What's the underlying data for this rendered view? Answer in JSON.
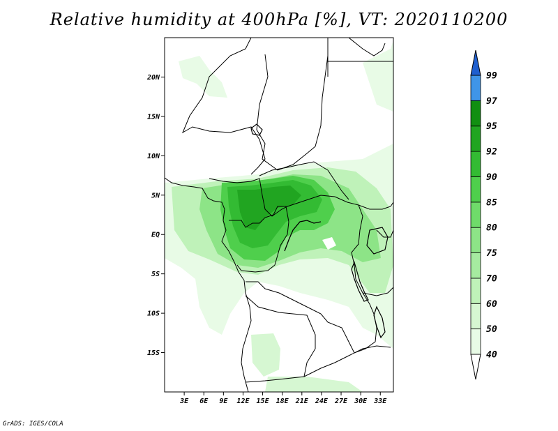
{
  "title": "Relative humidity at 400hPa [%], VT: 2020110200",
  "credit": "GrADS: IGES/COLA",
  "map": {
    "lon_range": [
      0,
      35
    ],
    "lat_range": [
      -20,
      25
    ],
    "lat_ticks": [
      {
        "value": 20,
        "label": "20N"
      },
      {
        "value": 15,
        "label": "15N"
      },
      {
        "value": 10,
        "label": "10N"
      },
      {
        "value": 5,
        "label": "5N"
      },
      {
        "value": 0,
        "label": "EQ"
      },
      {
        "value": -5,
        "label": "5S"
      },
      {
        "value": -10,
        "label": "10S"
      },
      {
        "value": -15,
        "label": "15S"
      }
    ],
    "lon_ticks": [
      {
        "value": 3,
        "label": "3E"
      },
      {
        "value": 6,
        "label": "6E"
      },
      {
        "value": 9,
        "label": "9E"
      },
      {
        "value": 12,
        "label": "12E"
      },
      {
        "value": 15,
        "label": "15E"
      },
      {
        "value": 18,
        "label": "18E"
      },
      {
        "value": 21,
        "label": "21E"
      },
      {
        "value": 24,
        "label": "24E"
      },
      {
        "value": 27,
        "label": "27E"
      },
      {
        "value": 30,
        "label": "30E"
      },
      {
        "value": 33,
        "label": "33E"
      }
    ]
  },
  "colorbar": {
    "levels": [
      {
        "label": "40",
        "color": "#e8fbe6"
      },
      {
        "label": "50",
        "color": "#d6f7d2"
      },
      {
        "label": "60",
        "color": "#bff2b9"
      },
      {
        "label": "70",
        "color": "#a6eba0"
      },
      {
        "label": "75",
        "color": "#8de487"
      },
      {
        "label": "80",
        "color": "#6fdb6a"
      },
      {
        "label": "85",
        "color": "#4fcf4c"
      },
      {
        "label": "90",
        "color": "#33bb33"
      },
      {
        "label": "92",
        "color": "#21a521"
      },
      {
        "label": "95",
        "color": "#118f11"
      },
      {
        "label": "97",
        "color": "#3f95e8"
      },
      {
        "label": "99",
        "color": "#2073dc"
      }
    ],
    "top_color": "#1f5fcf",
    "bottom_color": "#ffffff"
  }
}
